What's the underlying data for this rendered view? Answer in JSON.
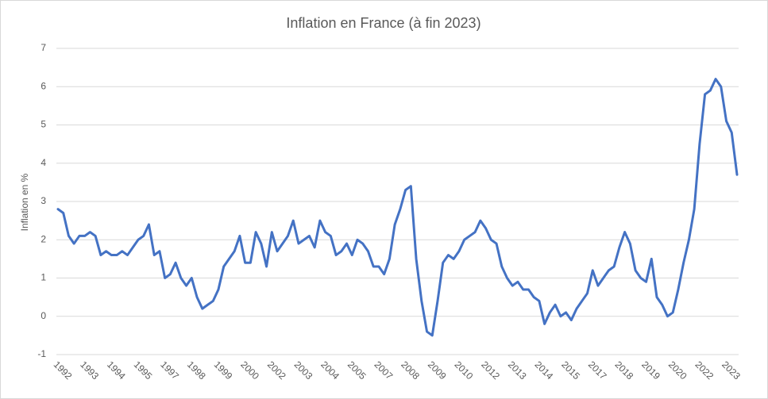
{
  "chart_data": {
    "type": "line",
    "title": "Inflation en France (à fin 2023)",
    "y_label": "Inflation en %",
    "ylim": [
      -1,
      7
    ],
    "yticks": [
      -1,
      0,
      1,
      2,
      3,
      4,
      5,
      6,
      7
    ],
    "grid": true,
    "categories": [
      "1992",
      null,
      null,
      null,
      null,
      "1993",
      null,
      null,
      null,
      null,
      "1994",
      null,
      null,
      null,
      null,
      "1995",
      null,
      null,
      null,
      null,
      "1997",
      null,
      null,
      null,
      null,
      "1998",
      null,
      null,
      null,
      null,
      "1999",
      null,
      null,
      null,
      null,
      "2000",
      null,
      null,
      null,
      null,
      "2002",
      null,
      null,
      null,
      null,
      "2003",
      null,
      null,
      null,
      null,
      "2004",
      null,
      null,
      null,
      null,
      "2005",
      null,
      null,
      null,
      null,
      "2007",
      null,
      null,
      null,
      null,
      "2008",
      null,
      null,
      null,
      null,
      "2009",
      null,
      null,
      null,
      null,
      "2010",
      null,
      null,
      null,
      null,
      "2012",
      null,
      null,
      null,
      null,
      "2013",
      null,
      null,
      null,
      null,
      "2014",
      null,
      null,
      null,
      null,
      "2015",
      null,
      null,
      null,
      null,
      "2017",
      null,
      null,
      null,
      null,
      "2018",
      null,
      null,
      null,
      null,
      "2019",
      null,
      null,
      null,
      null,
      "2020",
      null,
      null,
      null,
      null,
      "2022",
      null,
      null,
      null,
      null,
      "2023",
      null,
      null
    ],
    "series": [
      {
        "name": "Inflation",
        "color": "#4472c4",
        "values": [
          2.8,
          2.7,
          2.1,
          1.9,
          2.1,
          2.1,
          2.2,
          2.1,
          1.6,
          1.7,
          1.6,
          1.6,
          1.7,
          1.6,
          1.8,
          2.0,
          2.1,
          2.4,
          1.6,
          1.7,
          1.0,
          1.1,
          1.4,
          1.0,
          0.8,
          1.0,
          0.5,
          0.2,
          0.3,
          0.4,
          0.7,
          1.3,
          1.5,
          1.7,
          2.1,
          1.4,
          1.4,
          2.2,
          1.9,
          1.3,
          2.2,
          1.7,
          1.9,
          2.1,
          2.5,
          1.9,
          2.0,
          2.1,
          1.8,
          2.5,
          2.2,
          2.1,
          1.6,
          1.7,
          1.9,
          1.6,
          2.0,
          1.9,
          1.7,
          1.3,
          1.3,
          1.1,
          1.5,
          2.4,
          2.8,
          3.3,
          3.4,
          1.5,
          0.4,
          -0.4,
          -0.5,
          0.4,
          1.4,
          1.6,
          1.5,
          1.7,
          2.0,
          2.1,
          2.2,
          2.5,
          2.3,
          2.0,
          1.9,
          1.3,
          1.0,
          0.8,
          0.9,
          0.7,
          0.7,
          0.5,
          0.4,
          -0.2,
          0.1,
          0.3,
          0.0,
          0.1,
          -0.1,
          0.2,
          0.4,
          0.6,
          1.2,
          0.8,
          1.0,
          1.2,
          1.3,
          1.8,
          2.2,
          1.9,
          1.2,
          1.0,
          0.9,
          1.5,
          0.5,
          0.3,
          0.0,
          0.1,
          0.7,
          1.4,
          2.0,
          2.8,
          4.5,
          5.8,
          5.9,
          6.2,
          6.0,
          5.1,
          4.8,
          3.7
        ]
      }
    ]
  }
}
